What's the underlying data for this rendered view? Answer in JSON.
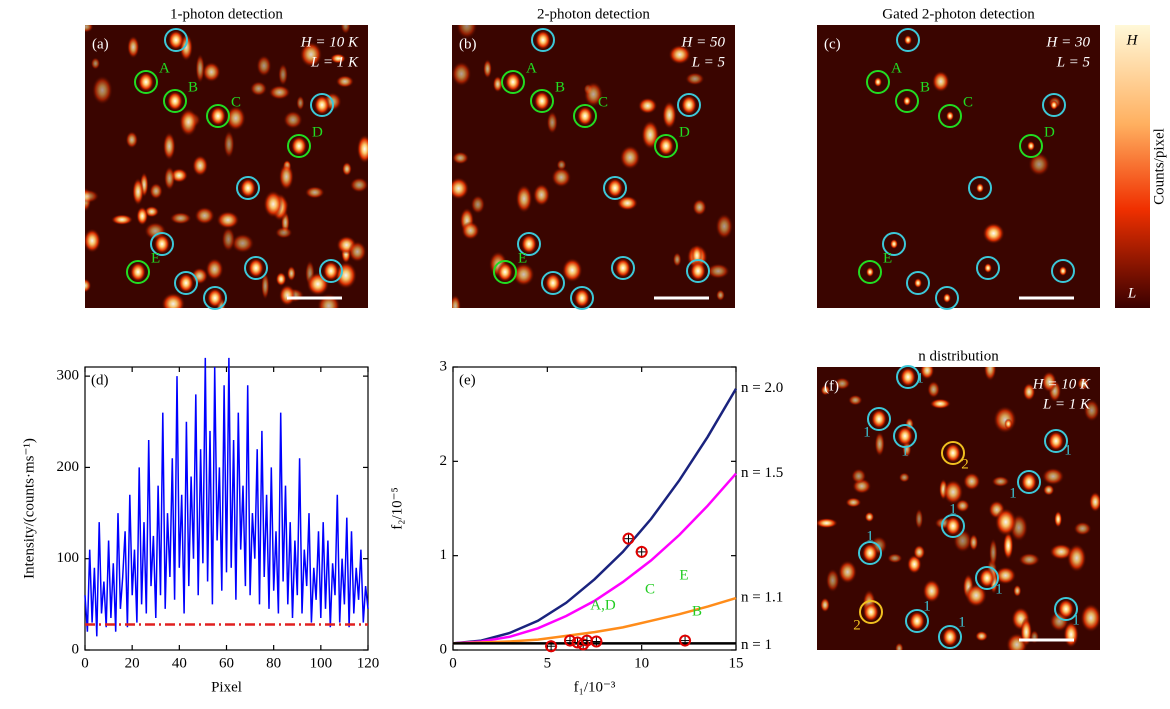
{
  "chart_data": [
    {
      "type": "image",
      "title": "1-photon detection",
      "panel": "(a)",
      "annotations": [
        "H = 10 K",
        "L = 1 K"
      ],
      "markers": [
        "A",
        "B",
        "C",
        "D",
        "E"
      ]
    },
    {
      "type": "image",
      "title": "2-photon detection",
      "panel": "(b)",
      "annotations": [
        "H = 50",
        "L = 5"
      ],
      "markers": [
        "A",
        "B",
        "C",
        "D",
        "E"
      ]
    },
    {
      "type": "image",
      "title": "Gated 2-photon detection",
      "panel": "(c)",
      "annotations": [
        "H = 30",
        "L = 5"
      ],
      "markers": [
        "A",
        "B",
        "C",
        "D",
        "E"
      ],
      "colorbar": {
        "label": "Counts/pixel",
        "high": "H",
        "low": "L"
      }
    },
    {
      "type": "line",
      "panel": "(d)",
      "xlabel": "Pixel",
      "ylabel": "Intensity/(counts·ms⁻¹)",
      "xlim": [
        0,
        120
      ],
      "ylim": [
        0,
        310
      ],
      "xticks": [
        0,
        20,
        40,
        60,
        80,
        100,
        120
      ],
      "yticks": [
        0,
        100,
        200,
        300
      ],
      "color": "#0000ff",
      "threshold": 28,
      "threshold_color": "#e02020",
      "x": [
        0,
        1,
        2,
        3,
        4,
        5,
        6,
        7,
        8,
        9,
        10,
        11,
        12,
        13,
        14,
        15,
        16,
        17,
        18,
        19,
        20,
        21,
        22,
        23,
        24,
        25,
        26,
        27,
        28,
        29,
        30,
        31,
        32,
        33,
        34,
        35,
        36,
        37,
        38,
        39,
        40,
        41,
        42,
        43,
        44,
        45,
        46,
        47,
        48,
        49,
        50,
        51,
        52,
        53,
        54,
        55,
        56,
        57,
        58,
        59,
        60,
        61,
        62,
        63,
        64,
        65,
        66,
        67,
        68,
        69,
        70,
        71,
        72,
        73,
        74,
        75,
        76,
        77,
        78,
        79,
        80,
        81,
        82,
        83,
        84,
        85,
        86,
        87,
        88,
        89,
        90,
        91,
        92,
        93,
        94,
        95,
        96,
        97,
        98,
        99,
        100,
        101,
        102,
        103,
        104,
        105,
        106,
        107,
        108,
        109,
        110,
        111,
        112,
        113,
        114,
        115,
        116,
        117,
        118,
        119,
        120
      ],
      "values": [
        60,
        20,
        110,
        30,
        90,
        15,
        140,
        40,
        75,
        25,
        120,
        35,
        95,
        20,
        150,
        45,
        80,
        130,
        25,
        170,
        60,
        110,
        30,
        200,
        50,
        140,
        40,
        230,
        70,
        125,
        35,
        180,
        60,
        260,
        45,
        150,
        80,
        210,
        55,
        300,
        90,
        170,
        40,
        250,
        70,
        190,
        100,
        280,
        60,
        220,
        95,
        320,
        75,
        240,
        50,
        310,
        120,
        200,
        65,
        290,
        85,
        320,
        90,
        230,
        55,
        260,
        110,
        180,
        70,
        290,
        60,
        150,
        100,
        220,
        50,
        240,
        80,
        170,
        45,
        200,
        65,
        130,
        40,
        260,
        75,
        180,
        50,
        140,
        35,
        120,
        60,
        210,
        40,
        110,
        70,
        150,
        30,
        90,
        55,
        130,
        35,
        140,
        45,
        120,
        25,
        95,
        60,
        170,
        30,
        100,
        50,
        145,
        25,
        130,
        40,
        90,
        55,
        110,
        30,
        70,
        45
      ]
    },
    {
      "type": "scatter",
      "panel": "(e)",
      "xlabel": "f₁/10⁻³",
      "ylabel": "f₂/10⁻⁵",
      "xlim": [
        0,
        15
      ],
      "ylim": [
        0,
        3
      ],
      "xticks": [
        0,
        5,
        10,
        15
      ],
      "yticks": [
        0,
        1,
        2,
        3
      ],
      "curves": {
        "x": [
          0,
          1.5,
          3,
          4.5,
          6,
          7.5,
          9,
          10.5,
          12,
          13.5,
          15
        ],
        "series": [
          {
            "name": "n = 2.0",
            "color": "#1a237e",
            "values": [
              0.07,
              0.1,
              0.18,
              0.31,
              0.5,
              0.75,
              1.04,
              1.39,
              1.8,
              2.26,
              2.77
            ]
          },
          {
            "name": "n = 1.5",
            "color": "#ff00ff",
            "values": [
              0.07,
              0.09,
              0.14,
              0.23,
              0.36,
              0.52,
              0.72,
              0.95,
              1.22,
              1.53,
              1.87
            ]
          },
          {
            "name": "n = 1.1",
            "color": "#ff8c1a",
            "values": [
              0.07,
              0.08,
              0.09,
              0.11,
              0.15,
              0.19,
              0.24,
              0.31,
              0.38,
              0.46,
              0.55
            ]
          },
          {
            "name": "n = 1",
            "color": "#000000",
            "values": [
              0.07,
              0.07,
              0.07,
              0.07,
              0.07,
              0.07,
              0.07,
              0.07,
              0.07,
              0.07,
              0.07
            ]
          }
        ]
      },
      "points": {
        "color": "#e00000",
        "x": [
          5.2,
          6.2,
          6.6,
          6.9,
          7.1,
          7.6,
          9.3,
          10.0,
          12.3
        ],
        "y": [
          0.04,
          0.1,
          0.08,
          0.06,
          0.1,
          0.09,
          1.18,
          1.04,
          0.1
        ]
      },
      "annotations": [
        "C",
        "E",
        "A,D",
        "B"
      ]
    },
    {
      "type": "image",
      "title": "n distribution",
      "panel": "(f)",
      "annotations": [
        "H = 10 K",
        "L = 1 K"
      ],
      "markers": [
        "1",
        "1",
        "1",
        "2",
        "1",
        "1",
        "1",
        "1",
        "1",
        "2",
        "1",
        "1",
        "1"
      ]
    }
  ]
}
